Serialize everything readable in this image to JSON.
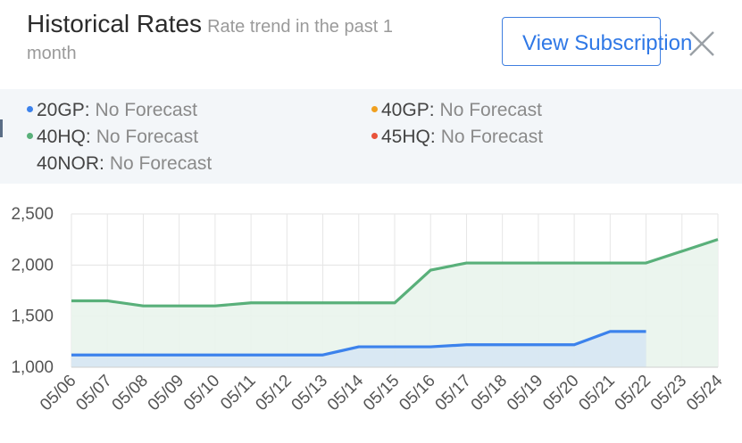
{
  "header": {
    "title": "Historical Rates",
    "subtitle_part1": "Rate trend in the past 1",
    "subtitle_part2": "month",
    "view_button_label": "View Subscription"
  },
  "legend": {
    "items": [
      {
        "name": "20GP:",
        "value": "No Forecast",
        "color": "#3c82ec"
      },
      {
        "name": "40GP:",
        "value": "No Forecast",
        "color": "#f0a020"
      },
      {
        "name": "40HQ:",
        "value": "No Forecast",
        "color": "#59b07a"
      },
      {
        "name": "45HQ:",
        "value": "No Forecast",
        "color": "#e8533a"
      },
      {
        "name": "40NOR:",
        "value": "No Forecast",
        "color": ""
      }
    ]
  },
  "chart_data": {
    "type": "line",
    "x": [
      "05/06",
      "05/07",
      "05/08",
      "05/09",
      "05/10",
      "05/11",
      "05/12",
      "05/13",
      "05/14",
      "05/15",
      "05/16",
      "05/17",
      "05/18",
      "05/19",
      "05/20",
      "05/21",
      "05/22",
      "05/23",
      "05/24"
    ],
    "yticks": [
      "1,000",
      "1,500",
      "2,000",
      "2,500"
    ],
    "ylim": [
      1000,
      2500
    ],
    "grid": true,
    "series": [
      {
        "color": "#59b07a",
        "fill": "#e9f4ec",
        "values": [
          1650,
          1650,
          1600,
          1600,
          1600,
          1630,
          1630,
          1630,
          1630,
          1630,
          1950,
          2020,
          2020,
          2020,
          2020,
          2020,
          2020,
          2135,
          2250
        ]
      },
      {
        "color": "#3c82ec",
        "fill": "#d7e7f3",
        "values": [
          1120,
          1120,
          1120,
          1120,
          1120,
          1120,
          1120,
          1120,
          1200,
          1200,
          1200,
          1220,
          1220,
          1220,
          1220,
          1350,
          1350,
          null,
          null
        ]
      }
    ]
  }
}
